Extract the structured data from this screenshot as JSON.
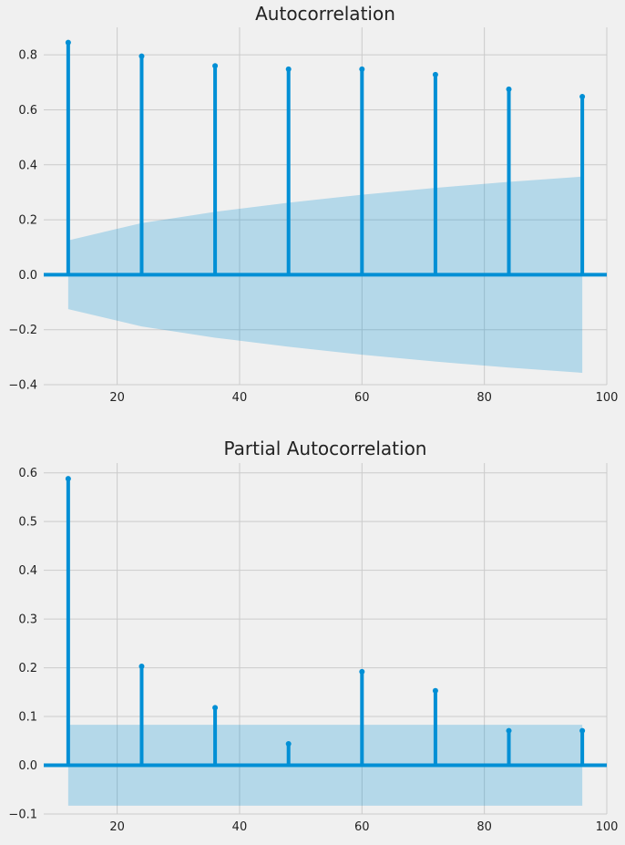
{
  "chart_data": [
    {
      "type": "stem",
      "title": "Autocorrelation",
      "xlim": [
        8,
        100
      ],
      "ylim": [
        -0.4,
        0.9
      ],
      "x_ticks": [
        20,
        40,
        60,
        80,
        100
      ],
      "y_ticks": [
        -0.4,
        -0.2,
        0.0,
        0.2,
        0.4,
        0.6,
        0.8
      ],
      "tick_decimals": 1,
      "grid": true,
      "x": [
        12,
        24,
        36,
        48,
        60,
        72,
        84,
        96
      ],
      "values": [
        0.845,
        0.795,
        0.76,
        0.748,
        0.748,
        0.728,
        0.675,
        0.648
      ],
      "confidence_interval": {
        "x": [
          12,
          24,
          36,
          48,
          60,
          72,
          84,
          96
        ],
        "upper": [
          0.125,
          0.188,
          0.229,
          0.262,
          0.291,
          0.316,
          0.338,
          0.357
        ],
        "lower": [
          -0.125,
          -0.188,
          -0.229,
          -0.262,
          -0.291,
          -0.316,
          -0.338,
          -0.357
        ]
      },
      "colors": {
        "stem": "#008fd5",
        "band": "#008fd5",
        "background": "#f0f0f0",
        "grid": "#cbcbcb"
      }
    },
    {
      "type": "stem",
      "title": "Partial Autocorrelation",
      "xlim": [
        8,
        100
      ],
      "ylim": [
        -0.1,
        0.62
      ],
      "x_ticks": [
        20,
        40,
        60,
        80,
        100
      ],
      "y_ticks": [
        -0.1,
        0.0,
        0.1,
        0.2,
        0.3,
        0.4,
        0.5,
        0.6
      ],
      "tick_decimals": 1,
      "grid": true,
      "x": [
        12,
        24,
        36,
        48,
        60,
        72,
        84,
        96
      ],
      "values": [
        0.588,
        0.203,
        0.118,
        0.044,
        0.192,
        0.153,
        0.071,
        0.071
      ],
      "confidence_interval": {
        "x": [
          12,
          24,
          36,
          48,
          60,
          72,
          84,
          96
        ],
        "upper": [
          0.083,
          0.083,
          0.083,
          0.083,
          0.083,
          0.083,
          0.083,
          0.083
        ],
        "lower": [
          -0.083,
          -0.083,
          -0.083,
          -0.083,
          -0.083,
          -0.083,
          -0.083,
          -0.083
        ]
      },
      "colors": {
        "stem": "#008fd5",
        "band": "#008fd5",
        "background": "#f0f0f0",
        "grid": "#cbcbcb"
      }
    }
  ]
}
